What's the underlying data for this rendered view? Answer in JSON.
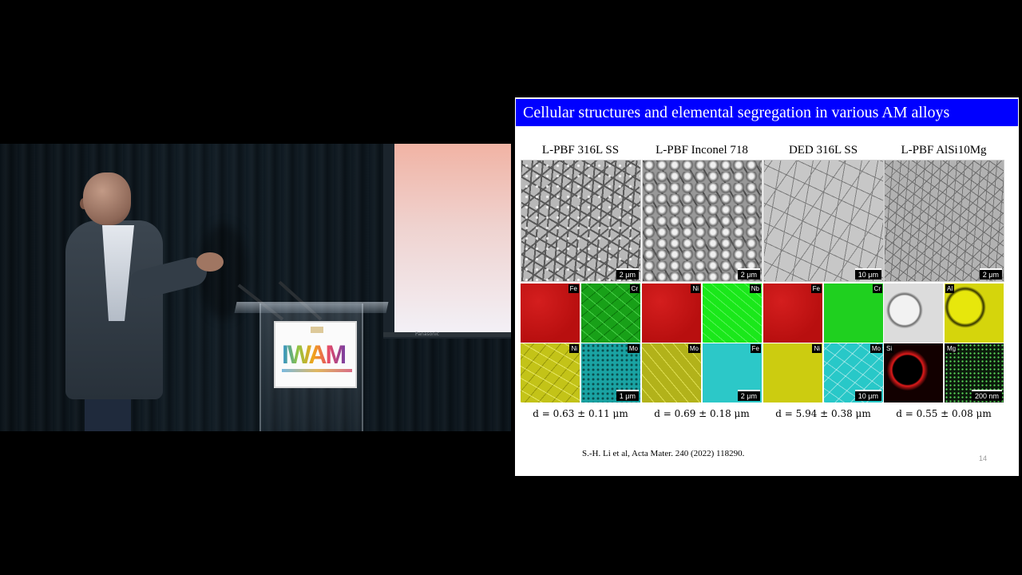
{
  "slide": {
    "title": "Cellular structures and elemental segregation in various AM alloys",
    "columns": [
      {
        "header": "L-PBF 316L SS",
        "sem_scale": "2 μm",
        "maps": [
          "Fe",
          "Cr",
          "Ni",
          "Mo"
        ],
        "map_scale": "1 μm",
        "d_value": "d = 0.63 ± 0.11 μm"
      },
      {
        "header": "L-PBF Inconel 718",
        "sem_scale": "2 μm",
        "maps": [
          "Ni",
          "Nb",
          "Mo",
          "Fe"
        ],
        "map_scale": "2 μm",
        "d_value": "d = 0.69 ± 0.18 μm"
      },
      {
        "header": "DED 316L SS",
        "sem_scale": "10 μm",
        "maps": [
          "Fe",
          "Cr",
          "Ni",
          "Mo"
        ],
        "map_scale": "10 μm",
        "d_value": "d = 5.94 ± 0.38 μm"
      },
      {
        "header": "L-PBF AlSi10Mg",
        "sem_scale": "2 μm",
        "maps": [
          "",
          "Al",
          "Si",
          "Mg"
        ],
        "map_scale": "200 nm",
        "d_value": "d = 0.55 ± 0.08 μm"
      }
    ],
    "reference": "S.-H. Li et al, Acta Mater. 240 (2022) 118290.",
    "page_number": "14"
  },
  "stage": {
    "podium_sign_text": "IWAM",
    "screen_label": "Panasonic"
  }
}
